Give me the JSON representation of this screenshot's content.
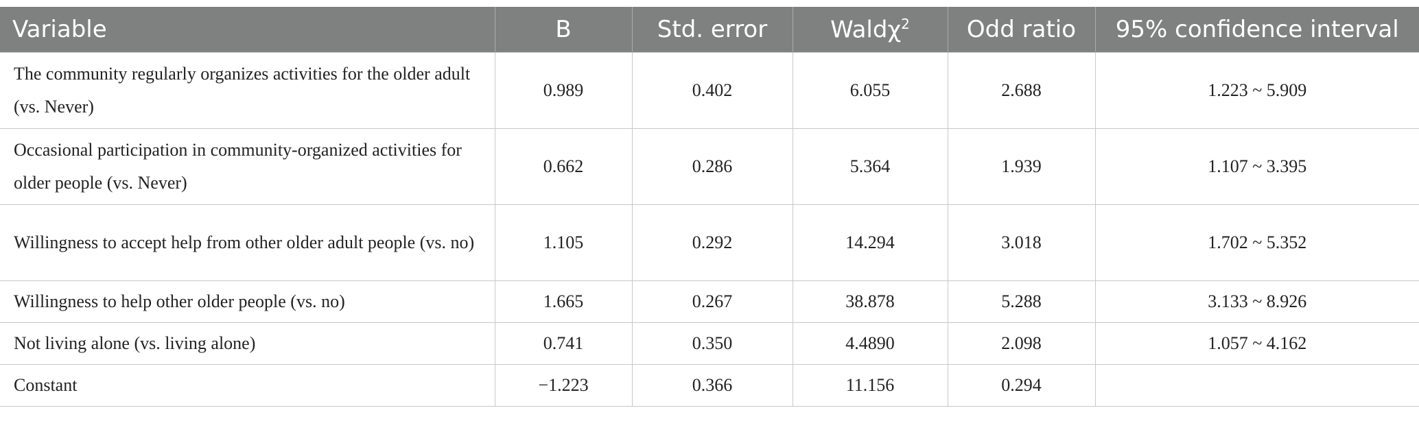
{
  "table": {
    "headers": [
      "Variable",
      "B",
      "Std. error",
      {
        "text": "Waldχ",
        "sup": "2"
      },
      "Odd ratio",
      "95% confidence interval"
    ],
    "rows": [
      [
        "The community regularly organizes activities for the older adult (vs. Never)",
        "0.989",
        "0.402",
        "6.055",
        "2.688",
        "1.223 ~ 5.909"
      ],
      [
        "Occasional participation in community-organized activities for older people (vs. Never)",
        "0.662",
        "0.286",
        "5.364",
        "1.939",
        "1.107 ~ 3.395"
      ],
      [
        "Willingness to accept help from other older adult people (vs. no)",
        "1.105",
        "0.292",
        "14.294",
        "3.018",
        "1.702 ~ 5.352"
      ],
      [
        "Willingness to help other older people (vs. no)",
        "1.665",
        "0.267",
        "38.878",
        "5.288",
        "3.133 ~ 8.926"
      ],
      [
        "Not living alone (vs. living alone)",
        "0.741",
        "0.350",
        "4.4890",
        "2.098",
        "1.057 ~ 4.162"
      ],
      [
        "Constant",
        "−1.223",
        "0.366",
        "11.156",
        "0.294"
      ]
    ]
  }
}
